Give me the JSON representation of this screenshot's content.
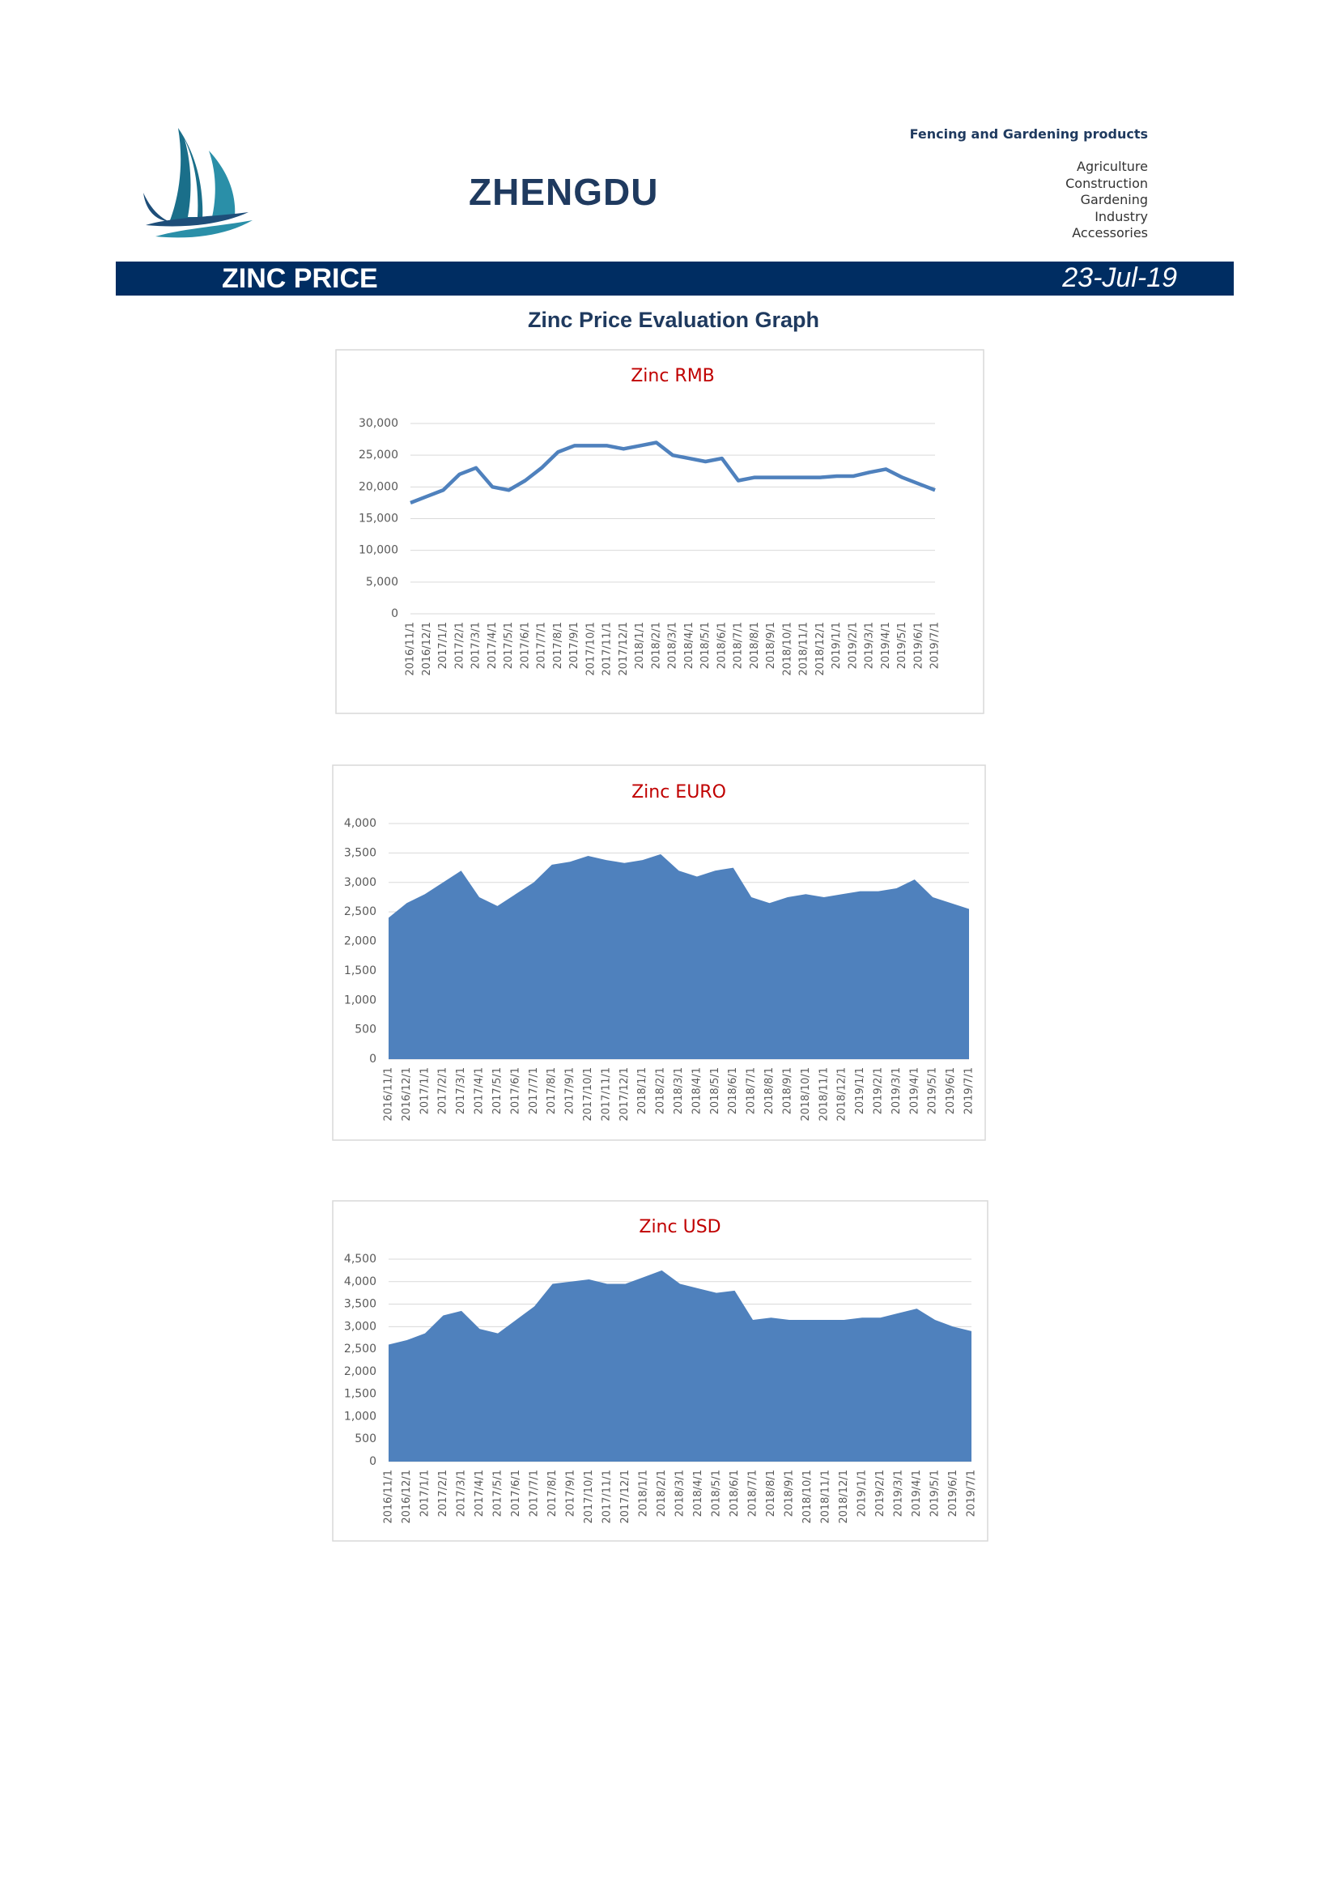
{
  "header": {
    "company": "ZHENGDU",
    "tagline": "Fencing and Gardening products",
    "products": [
      "Agriculture",
      "Construction",
      "Gardening",
      "Industry",
      "Accessories"
    ]
  },
  "banner": {
    "title": "ZINC PRICE",
    "date": "23-Jul-19"
  },
  "heading": "Zinc Price Evaluation Graph",
  "chart_data": [
    {
      "type": "line",
      "title": "Zinc RMB",
      "color": "#4f81bd",
      "categories": [
        "2016/11/1",
        "2016/12/1",
        "2017/1/1",
        "2017/2/1",
        "2017/3/1",
        "2017/4/1",
        "2017/5/1",
        "2017/6/1",
        "2017/7/1",
        "2017/8/1",
        "2017/9/1",
        "2017/10/1",
        "2017/11/1",
        "2017/12/1",
        "2018/1/1",
        "2018/2/1",
        "2018/3/1",
        "2018/4/1",
        "2018/5/1",
        "2018/6/1",
        "2018/7/1",
        "2018/8/1",
        "2018/9/1",
        "2018/10/1",
        "2018/11/1",
        "2018/12/1",
        "2019/1/1",
        "2019/2/1",
        "2019/3/1",
        "2019/4/1",
        "2019/5/1",
        "2019/6/1",
        "2019/7/1"
      ],
      "values": [
        17500,
        18500,
        19500,
        22000,
        23000,
        20000,
        19500,
        21000,
        23000,
        25500,
        26500,
        26500,
        26500,
        26000,
        26500,
        27000,
        25000,
        24500,
        24000,
        24500,
        21000,
        21500,
        21500,
        21500,
        21500,
        21500,
        21700,
        21700,
        22300,
        22800,
        21500,
        20500,
        19500
      ],
      "ylim": [
        0,
        30000
      ],
      "yticks": [
        0,
        {
          "value": 5000,
          "label": "5,000"
        },
        {
          "value": 10000,
          "label": "10,000"
        },
        {
          "value": 15000,
          "label": "15,000"
        },
        {
          "value": 20000,
          "label": "20,000"
        },
        {
          "value": 25000,
          "label": "25,000"
        },
        {
          "value": 30000,
          "label": "30,000"
        }
      ],
      "grid": true
    },
    {
      "type": "area",
      "title": "Zinc EURO",
      "color": "#4f81bd",
      "categories": [
        "2016/11/1",
        "2016/12/1",
        "2017/1/1",
        "2017/2/1",
        "2017/3/1",
        "2017/4/1",
        "2017/5/1",
        "2017/6/1",
        "2017/7/1",
        "2017/8/1",
        "2017/9/1",
        "2017/10/1",
        "2017/11/1",
        "2017/12/1",
        "2018/1/1",
        "2018/2/1",
        "2018/3/1",
        "2018/4/1",
        "2018/5/1",
        "2018/6/1",
        "2018/7/1",
        "2018/8/1",
        "2018/9/1",
        "2018/10/1",
        "2018/11/1",
        "2018/12/1",
        "2019/1/1",
        "2019/2/1",
        "2019/3/1",
        "2019/4/1",
        "2019/5/1",
        "2019/6/1",
        "2019/7/1"
      ],
      "values": [
        2400,
        2650,
        2800,
        3000,
        3200,
        2750,
        2600,
        2800,
        3000,
        3300,
        3350,
        3450,
        3380,
        3330,
        3380,
        3480,
        3200,
        3100,
        3200,
        3250,
        2750,
        2650,
        2750,
        2800,
        2750,
        2800,
        2850,
        2850,
        2900,
        3050,
        2750,
        2650,
        2550
      ],
      "ylim": [
        0,
        4000
      ],
      "yticks": [
        0,
        500,
        {
          "value": 1000,
          "label": "1,000"
        },
        {
          "value": 1500,
          "label": "1,500"
        },
        {
          "value": 2000,
          "label": "2,000"
        },
        {
          "value": 2500,
          "label": "2,500"
        },
        {
          "value": 3000,
          "label": "3,000"
        },
        {
          "value": 3500,
          "label": "3,500"
        },
        {
          "value": 4000,
          "label": "4,000"
        }
      ],
      "grid": true
    },
    {
      "type": "area",
      "title": "Zinc USD",
      "color": "#4f81bd",
      "categories": [
        "2016/11/1",
        "2016/12/1",
        "2017/1/1",
        "2017/2/1",
        "2017/3/1",
        "2017/4/1",
        "2017/5/1",
        "2017/6/1",
        "2017/7/1",
        "2017/8/1",
        "2017/9/1",
        "2017/10/1",
        "2017/11/1",
        "2017/12/1",
        "2018/1/1",
        "2018/2/1",
        "2018/3/1",
        "2018/4/1",
        "2018/5/1",
        "2018/6/1",
        "2018/7/1",
        "2018/8/1",
        "2018/9/1",
        "2018/10/1",
        "2018/11/1",
        "2018/12/1",
        "2019/1/1",
        "2019/2/1",
        "2019/3/1",
        "2019/4/1",
        "2019/5/1",
        "2019/6/1",
        "2019/7/1"
      ],
      "values": [
        2600,
        2700,
        2850,
        3250,
        3350,
        2950,
        2850,
        3150,
        3450,
        3950,
        4000,
        4050,
        3950,
        3950,
        4100,
        4250,
        3950,
        3850,
        3750,
        3800,
        3150,
        3200,
        3150,
        3150,
        3150,
        3150,
        3200,
        3200,
        3300,
        3400,
        3150,
        3000,
        2900
      ],
      "ylim": [
        0,
        4500
      ],
      "yticks": [
        0,
        500,
        {
          "value": 1000,
          "label": "1,000"
        },
        {
          "value": 1500,
          "label": "1,500"
        },
        {
          "value": 2000,
          "label": "2,000"
        },
        {
          "value": 2500,
          "label": "2,500"
        },
        {
          "value": 3000,
          "label": "3,000"
        },
        {
          "value": 3500,
          "label": "3,500"
        },
        {
          "value": 4000,
          "label": "4,000"
        },
        {
          "value": 4500,
          "label": "4,500"
        }
      ],
      "grid": true
    }
  ]
}
